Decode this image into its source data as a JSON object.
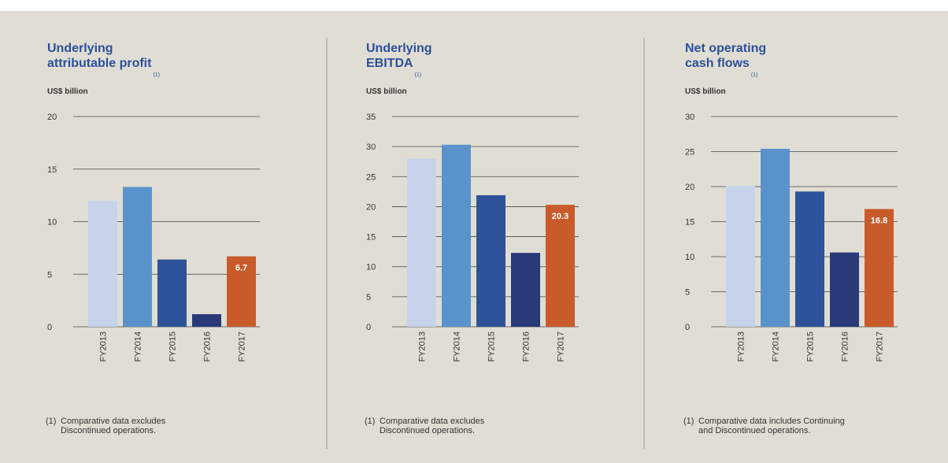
{
  "chart_data": [
    {
      "type": "bar",
      "title": [
        "Underlying",
        "attributable profit"
      ],
      "title_marker": "(1)",
      "y_unit": "US$ billion",
      "categories": [
        "FY2013",
        "FY2014",
        "FY2015",
        "FY2016",
        "FY2017"
      ],
      "values": [
        12.0,
        13.3,
        6.4,
        1.2,
        6.7
      ],
      "value_labels": [
        null,
        null,
        null,
        null,
        "6.7"
      ],
      "colors": [
        "#c6d3ea",
        "#5a93cc",
        "#2e529a",
        "#283a78",
        "#c95b2b"
      ],
      "ylim": [
        0,
        20
      ],
      "yticks": [
        0,
        5,
        10,
        15,
        20
      ],
      "grid": true,
      "footnote_marker": "(1)",
      "footnote": [
        "Comparative data excludes",
        "Discontinued operations."
      ]
    },
    {
      "type": "bar",
      "title": [
        "Underlying",
        "EBITDA"
      ],
      "title_marker": "(1)",
      "y_unit": "US$ billion",
      "categories": [
        "FY2013",
        "FY2014",
        "FY2015",
        "FY2016",
        "FY2017"
      ],
      "values": [
        28.0,
        30.3,
        21.9,
        12.3,
        20.3
      ],
      "value_labels": [
        null,
        null,
        null,
        null,
        "20.3"
      ],
      "colors": [
        "#c6d3ea",
        "#5a93cc",
        "#2e529a",
        "#283a78",
        "#c95b2b"
      ],
      "ylim": [
        0,
        35
      ],
      "yticks": [
        0,
        5,
        10,
        15,
        20,
        25,
        30,
        35
      ],
      "grid": true,
      "footnote_marker": "(1)",
      "footnote": [
        "Comparative data excludes",
        "Discontinued operations."
      ]
    },
    {
      "type": "bar",
      "title": [
        "Net operating",
        "cash flows"
      ],
      "title_marker": "(1)",
      "y_unit": "US$ billion",
      "categories": [
        "FY2013",
        "FY2014",
        "FY2015",
        "FY2016",
        "FY2017"
      ],
      "values": [
        20.1,
        25.4,
        19.3,
        10.6,
        16.8
      ],
      "value_labels": [
        null,
        null,
        null,
        null,
        "16.8"
      ],
      "colors": [
        "#c6d3ea",
        "#5a93cc",
        "#2e529a",
        "#283a78",
        "#c95b2b"
      ],
      "ylim": [
        0,
        30
      ],
      "yticks": [
        0,
        5,
        10,
        15,
        20,
        25,
        30
      ],
      "grid": true,
      "footnote_marker": "(1)",
      "footnote": [
        "Comparative data includes Continuing",
        "and Discontinued operations."
      ]
    }
  ]
}
